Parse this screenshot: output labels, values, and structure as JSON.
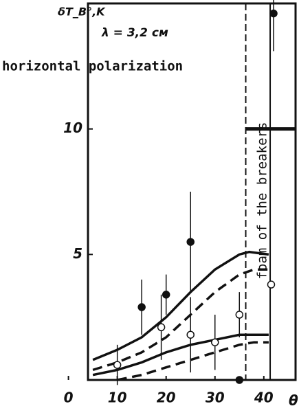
{
  "chart_data": {
    "type": "scatter",
    "y_label": "δT_B°,K",
    "x_label": "θ°",
    "annotations": [
      "λ = 3,2 cм",
      "horizontal polarization",
      "foam of the breakers"
    ],
    "xlim": [
      4,
      46.5
    ],
    "xticks": [
      0,
      10,
      20,
      30,
      40
    ],
    "ylim": [
      0,
      15
    ],
    "yticks": [
      5,
      10
    ],
    "dashed_boundary_x": 36.3,
    "solid_boundary_x": 41.3,
    "arrow_y": 10,
    "filled_points": {
      "x": [
        15,
        20,
        25,
        35,
        42
      ],
      "values": [
        2.9,
        3.4,
        5.5,
        0,
        14.6
      ],
      "errors": [
        1.1,
        0.8,
        2,
        0,
        1.5
      ]
    },
    "open_points": {
      "x": [
        10,
        19,
        25,
        30,
        35,
        41.5
      ],
      "values": [
        0.6,
        2.1,
        1.8,
        1.5,
        2.6,
        3.8
      ],
      "errors": [
        0.8,
        1.3,
        1.5,
        1.1,
        0.9,
        0
      ]
    },
    "curves": [
      {
        "style": "solid",
        "x": [
          5,
          10,
          15,
          20,
          25,
          30,
          35,
          37,
          41
        ],
        "values": [
          0.8,
          1.2,
          1.7,
          2.5,
          3.5,
          4.4,
          5,
          5.1,
          5
        ]
      },
      {
        "style": "dashed",
        "x": [
          5,
          10,
          15,
          20,
          25,
          30,
          35,
          38,
          41
        ],
        "values": [
          0.4,
          0.7,
          1.1,
          1.7,
          2.6,
          3.5,
          4.2,
          4.4,
          4.4
        ]
      },
      {
        "style": "solid",
        "x": [
          5,
          10,
          15,
          20,
          25,
          30,
          35,
          37,
          41
        ],
        "values": [
          0.2,
          0.4,
          0.7,
          1.1,
          1.4,
          1.6,
          1.8,
          1.8,
          1.8
        ]
      },
      {
        "style": "dashed",
        "x": [
          10,
          15,
          20,
          25,
          30,
          35,
          38,
          41
        ],
        "values": [
          0,
          0.2,
          0.5,
          0.8,
          1.1,
          1.4,
          1.5,
          1.5
        ]
      }
    ]
  }
}
